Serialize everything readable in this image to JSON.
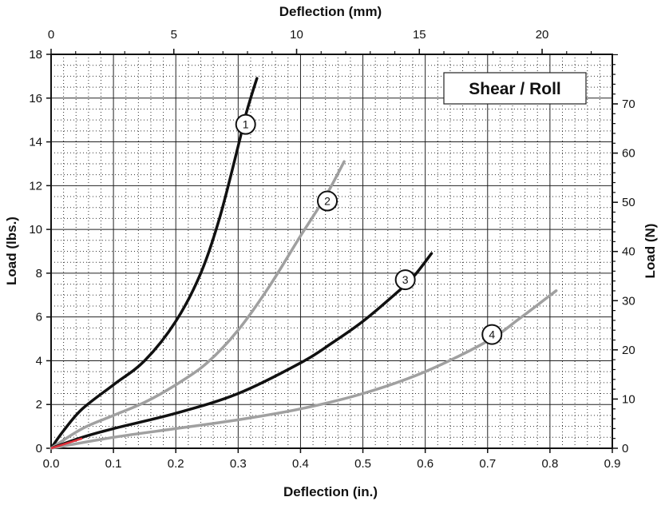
{
  "chart_data": {
    "type": "line",
    "title": "Shear / Roll",
    "xlabel": "Deflection (in.)",
    "ylabel": "Load (lbs.)",
    "x2label": "Deflection (mm)",
    "y2label": "Load (N)",
    "xlim": [
      0,
      0.9
    ],
    "ylim": [
      0,
      18
    ],
    "x2lim": [
      0,
      22.86
    ],
    "y2lim": [
      0,
      80.07
    ],
    "x_ticks": [
      "0.0",
      "0.1",
      "0.2",
      "0.3",
      "0.4",
      "0.5",
      "0.6",
      "0.7",
      "0.8",
      "0.9"
    ],
    "y_ticks": [
      "0",
      "2",
      "4",
      "6",
      "8",
      "10",
      "12",
      "14",
      "16",
      "18"
    ],
    "x2_ticks": [
      "0",
      "5",
      "10",
      "15",
      "20"
    ],
    "y2_ticks": [
      "0",
      "10",
      "20",
      "30",
      "40",
      "50",
      "60",
      "70"
    ],
    "grid": true,
    "series": [
      {
        "name": "1",
        "color": "#111111",
        "x": [
          0,
          0.02,
          0.05,
          0.1,
          0.15,
          0.2,
          0.24,
          0.27,
          0.3,
          0.31,
          0.32,
          0.33
        ],
        "y": [
          0,
          0.8,
          1.8,
          2.9,
          4.0,
          5.8,
          8.0,
          10.5,
          13.8,
          15.0,
          16.0,
          16.9
        ]
      },
      {
        "name": "2",
        "color": "#a0a0a0",
        "x": [
          0,
          0.05,
          0.1,
          0.15,
          0.2,
          0.25,
          0.3,
          0.35,
          0.4,
          0.44,
          0.47
        ],
        "y": [
          0,
          0.9,
          1.5,
          2.1,
          2.9,
          3.9,
          5.4,
          7.4,
          9.7,
          11.5,
          13.1
        ]
      },
      {
        "name": "3",
        "color": "#111111",
        "x": [
          0,
          0.05,
          0.1,
          0.2,
          0.3,
          0.4,
          0.45,
          0.5,
          0.55,
          0.58,
          0.61
        ],
        "y": [
          0,
          0.5,
          0.9,
          1.6,
          2.5,
          3.9,
          4.8,
          5.8,
          7.0,
          7.8,
          8.9
        ]
      },
      {
        "name": "4",
        "color": "#a0a0a0",
        "x": [
          0,
          0.1,
          0.2,
          0.3,
          0.4,
          0.5,
          0.6,
          0.7,
          0.75,
          0.81
        ],
        "y": [
          0,
          0.5,
          0.9,
          1.3,
          1.8,
          2.5,
          3.5,
          4.9,
          5.9,
          7.2
        ]
      }
    ],
    "label_points": [
      {
        "label": "1",
        "x": 0.312,
        "y": 14.8
      },
      {
        "label": "2",
        "x": 0.443,
        "y": 11.3
      },
      {
        "label": "3",
        "x": 0.568,
        "y": 7.7
      },
      {
        "label": "4",
        "x": 0.707,
        "y": 5.2
      }
    ],
    "origin_mark_color": "#e0303a"
  }
}
